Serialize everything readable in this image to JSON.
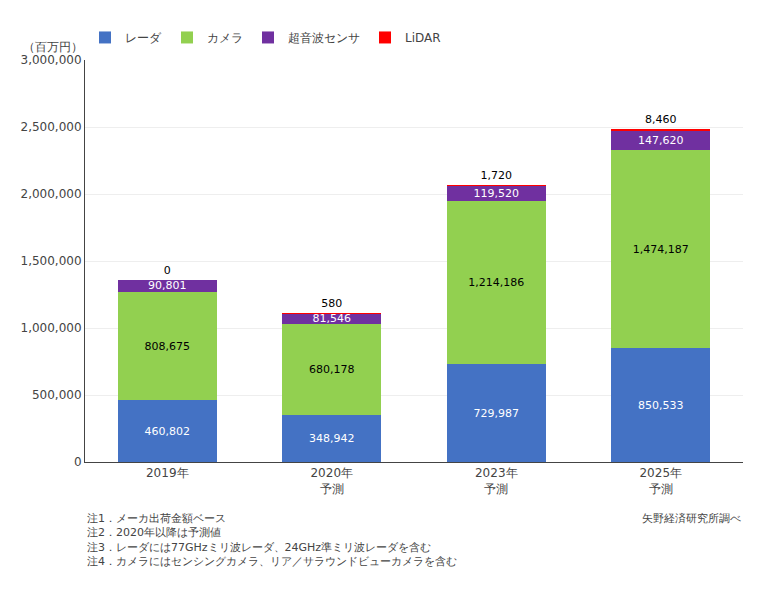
{
  "chart_data": {
    "type": "bar",
    "stacked": true,
    "categories": [
      "2019年",
      "2020年\n予測",
      "2023年\n予測",
      "2025年\n予測"
    ],
    "y_label": "（百万円）",
    "series": [
      {
        "name": "レーダ",
        "color": "#4472C4",
        "values": [
          460802,
          348942,
          729987,
          850533
        ],
        "value_labels": [
          "460,802",
          "348,942",
          "729,987",
          "850,533"
        ]
      },
      {
        "name": "カメラ",
        "color": "#92D050",
        "values": [
          808675,
          680178,
          1214186,
          1474187
        ],
        "value_labels": [
          "808,675",
          "680,178",
          "1,214,186",
          "1,474,187"
        ]
      },
      {
        "name": "超音波センサ",
        "color": "#7030A0",
        "values": [
          90801,
          81546,
          119520,
          147620
        ],
        "value_labels": [
          "90,801",
          "81,546",
          "119,520",
          "147,620"
        ]
      },
      {
        "name": "LiDAR",
        "color": "#FF0000",
        "values": [
          0,
          580,
          1720,
          8460
        ],
        "value_labels": [
          "0",
          "580",
          "1,720",
          "8,460"
        ]
      }
    ],
    "ylim": [
      0,
      3000000
    ],
    "yticks": [
      0,
      {
        "value": 500000,
        "label": "500,000"
      },
      {
        "value": 1000000,
        "label": "1,000,000"
      },
      {
        "value": 1500000,
        "label": "1,500,000"
      },
      {
        "value": 2000000,
        "label": "2,000,000"
      },
      {
        "value": 2500000,
        "label": "2,500,000"
      },
      {
        "value": 3000000,
        "label": "3,000,000"
      }
    ],
    "grid": true,
    "legend": "upper left",
    "data_labels": true,
    "annotations": [
      "注1．メーカ出荷金額ベース",
      "注2．2020年以降は予測値",
      "注3．レーダには77GHzミリ波レーダ、24GHz準ミリ波レーダを含む",
      "注4．カメラにはセンシングカメラ、リア／サラウンドビューカメラを含む"
    ],
    "source": "矢野経済研究所調べ"
  }
}
